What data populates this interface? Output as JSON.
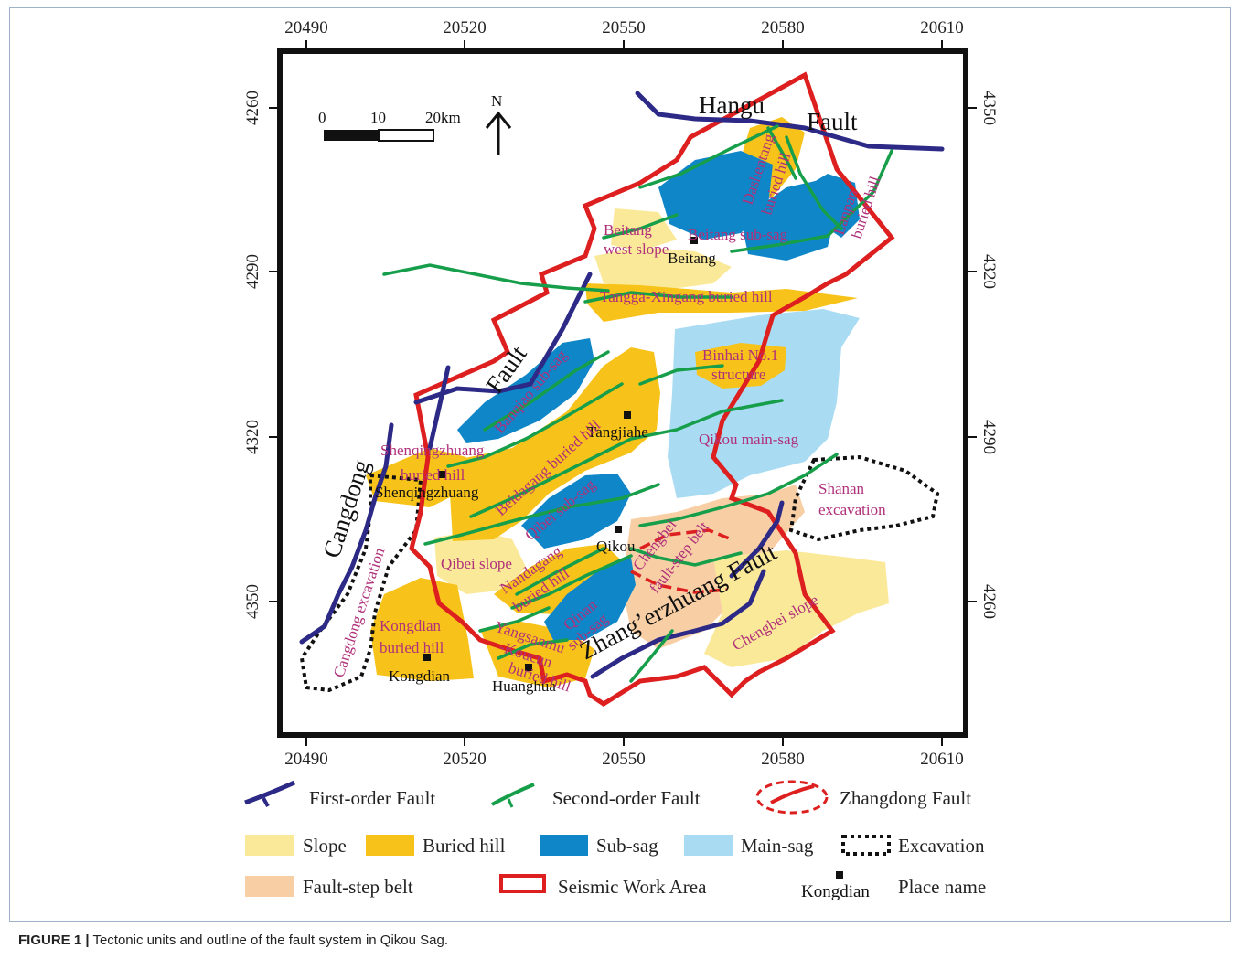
{
  "axes": {
    "top_ticks": [
      "20490",
      "20520",
      "20550",
      "20580",
      "20610"
    ],
    "bottom_ticks": [
      "20490",
      "20520",
      "20550",
      "20580",
      "20610"
    ],
    "left_ticks": [
      "4260",
      "4290",
      "4320",
      "4350"
    ],
    "right_ticks": [
      "4350",
      "4320",
      "4290",
      "4260"
    ]
  },
  "scale_bar": {
    "t0": "0",
    "t1": "10",
    "t2": "20km"
  },
  "north": "N",
  "faults": {
    "hangu": "Hangu",
    "hangu_fault": "Fault",
    "cangdong": "Cangdong",
    "fault2": "Fault",
    "gangxi_fault": "Fault",
    "zhaobeizhuang": "Zhang’erzhuang Fault"
  },
  "units": {
    "dashentang": "Dashentang",
    "dashentang_hill": "buried hill",
    "lanpan": "Lanpan",
    "lanpan_hill": "buried hill",
    "beitang_west_1": "Beitang",
    "beitang_west_2": "west slope",
    "beitang_subsag": "Beitang sub-sag",
    "tanggu": "Tangga-Xingang buried hill",
    "binhai_1": "Binhai No.1",
    "binhai_2": "structure",
    "banqiao": "Banqiao sub-sag",
    "beidagang": "Beidagang buried hill",
    "qikou_main": "Qikou main-sag",
    "shenqing_1": "Shenqingzhuang",
    "shenqing_2": "buried hill",
    "qibei_subsag": "Qibei sub-sag",
    "qibei_slope": "Qibei slope",
    "nandagang_1": "Nandagang",
    "nandagang_2": "buried hill",
    "qinan_1": "Qinan",
    "qinan_2": "sub-sag",
    "chengbei_step_1": "Chengbei",
    "chengbei_step_2": "fault-step belt",
    "chengbei_slope": "Chengbei slope",
    "kongdian_1": "Kongdian",
    "kongdian_2": "buried hill",
    "yangsanmu_1": "Yangsanmu",
    "yangsanmu_2": "-Koucun",
    "yangsanmu_3": "buried hill",
    "shanan_1": "Shanan",
    "shanan_2": "excavation",
    "cangdong_exc": "Cangdong excavation"
  },
  "places": {
    "beitang": "Beitang",
    "tangjiahe": "Tangjiahe",
    "shenqingzhuang": "Shenqingzhuang",
    "qikou": "Qikou",
    "kongdian": "Kongdian",
    "huanghua": "Huanghua"
  },
  "legend": {
    "first_order": "First-order Fault",
    "second_order": "Second-order Fault",
    "zhangdong": "Zhangdong Fault",
    "slope": "Slope",
    "buried_hill": "Buried hill",
    "sub_sag": "Sub-sag",
    "main_sag": "Main-sag",
    "excavation": "Excavation",
    "fault_step": "Fault-step belt",
    "seismic": "Seismic Work Area",
    "place_example": "Kongdian",
    "place_name": "Place name"
  },
  "colors": {
    "slope": "#fbe99a",
    "buried_hill": "#f7c31a",
    "sub_sag": "#0f86c8",
    "main_sag": "#a9dcf3",
    "fault_step": "#f8cfa5",
    "first_order": "#2c2a86",
    "second_order": "#169e4a",
    "seismic": "#dd1f1f",
    "label": "#b0307a"
  },
  "caption": {
    "figure": "FIGURE 1 |",
    "text": " Tectonic units and outline of the fault system in Qikou Sag."
  }
}
